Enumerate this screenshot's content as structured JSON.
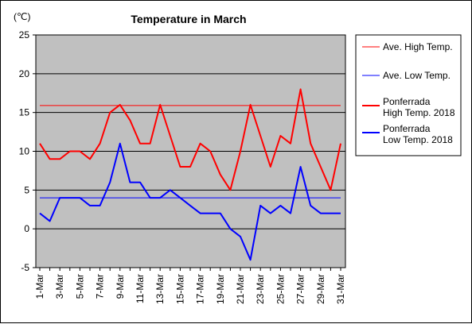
{
  "chart_data": {
    "type": "line",
    "title": "Temperature in March",
    "unit": "(℃)",
    "ylim": [
      -5,
      25
    ],
    "yticks": [
      -5,
      0,
      5,
      10,
      15,
      20,
      25
    ],
    "grid": true,
    "legend_position": "right",
    "categories": [
      "1-Mar",
      "2-Mar",
      "3-Mar",
      "4-Mar",
      "5-Mar",
      "6-Mar",
      "7-Mar",
      "8-Mar",
      "9-Mar",
      "10-Mar",
      "11-Mar",
      "12-Mar",
      "13-Mar",
      "14-Mar",
      "15-Mar",
      "16-Mar",
      "17-Mar",
      "18-Mar",
      "19-Mar",
      "20-Mar",
      "21-Mar",
      "22-Mar",
      "23-Mar",
      "24-Mar",
      "25-Mar",
      "26-Mar",
      "27-Mar",
      "28-Mar",
      "29-Mar",
      "30-Mar",
      "31-Mar"
    ],
    "x_tick_labels": [
      "1-Mar",
      "3-Mar",
      "5-Mar",
      "7-Mar",
      "9-Mar",
      "11-Mar",
      "13-Mar",
      "15-Mar",
      "17-Mar",
      "19-Mar",
      "21-Mar",
      "23-Mar",
      "25-Mar",
      "27-Mar",
      "29-Mar",
      "31-Mar"
    ],
    "series": [
      {
        "name": "Ave. High Temp.",
        "color": "#ff0000",
        "width": "thin",
        "values": [
          15.9,
          15.9,
          15.9,
          15.9,
          15.9,
          15.9,
          15.9,
          15.9,
          15.9,
          15.9,
          15.9,
          15.9,
          15.9,
          15.9,
          15.9,
          15.9,
          15.9,
          15.9,
          15.9,
          15.9,
          15.9,
          15.9,
          15.9,
          15.9,
          15.9,
          15.9,
          15.9,
          15.9,
          15.9,
          15.9,
          15.9
        ]
      },
      {
        "name": "Ave. Low Temp.",
        "color": "#0000ff",
        "width": "thin",
        "values": [
          4,
          4,
          4,
          4,
          4,
          4,
          4,
          4,
          4,
          4,
          4,
          4,
          4,
          4,
          4,
          4,
          4,
          4,
          4,
          4,
          4,
          4,
          4,
          4,
          4,
          4,
          4,
          4,
          4,
          4,
          4
        ]
      },
      {
        "name": "Ponferrada High Temp. 2018",
        "name_lines": [
          "Ponferrada",
          "High Temp. 2018"
        ],
        "color": "#ff0000",
        "width": "thick",
        "values": [
          11,
          9,
          9,
          10,
          10,
          9,
          11,
          15,
          16,
          14,
          11,
          11,
          16,
          12,
          8,
          8,
          11,
          10,
          7,
          5,
          10,
          16,
          12,
          8,
          12,
          11,
          18,
          11,
          8,
          5,
          11
        ]
      },
      {
        "name": "Ponferrada Low Temp. 2018",
        "name_lines": [
          "Ponferrada",
          "Low Temp. 2018"
        ],
        "color": "#0000ff",
        "width": "thick",
        "values": [
          2,
          1,
          4,
          4,
          4,
          3,
          3,
          6,
          11,
          6,
          6,
          4,
          4,
          5,
          4,
          3,
          2,
          2,
          2,
          0,
          -1,
          -4,
          3,
          2,
          3,
          2,
          8,
          3,
          2,
          2,
          2
        ]
      }
    ]
  }
}
